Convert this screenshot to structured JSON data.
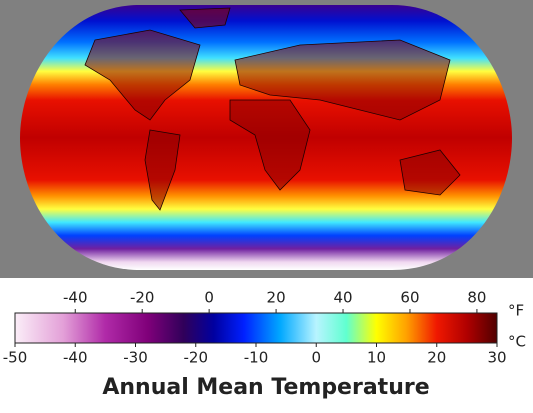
{
  "title": "Annual Mean Temperature",
  "colorbar": {
    "celsius_unit": "°C",
    "fahrenheit_unit": "°F",
    "clim": [
      -50,
      30
    ],
    "cticks": [
      -50,
      -40,
      -30,
      -20,
      -10,
      0,
      10,
      20,
      30
    ],
    "flim": [
      -58,
      86
    ],
    "fticks": [
      -40,
      -20,
      0,
      20,
      40,
      60,
      80
    ],
    "color_stops": [
      {
        "value": -50,
        "color": "#fbeef8"
      },
      {
        "value": -42,
        "color": "#e3a0d8"
      },
      {
        "value": -35,
        "color": "#b02aa8"
      },
      {
        "value": -28,
        "color": "#80007a"
      },
      {
        "value": -22,
        "color": "#30005a"
      },
      {
        "value": -17,
        "color": "#0000a0"
      },
      {
        "value": -12,
        "color": "#0020ff"
      },
      {
        "value": -6,
        "color": "#00a8ff"
      },
      {
        "value": 0,
        "color": "#b8f4ff"
      },
      {
        "value": 5,
        "color": "#60ffd0"
      },
      {
        "value": 10,
        "color": "#ffff00"
      },
      {
        "value": 15,
        "color": "#ffa000"
      },
      {
        "value": 20,
        "color": "#f01800"
      },
      {
        "value": 25,
        "color": "#b00000"
      },
      {
        "value": 30,
        "color": "#500000"
      }
    ]
  }
}
